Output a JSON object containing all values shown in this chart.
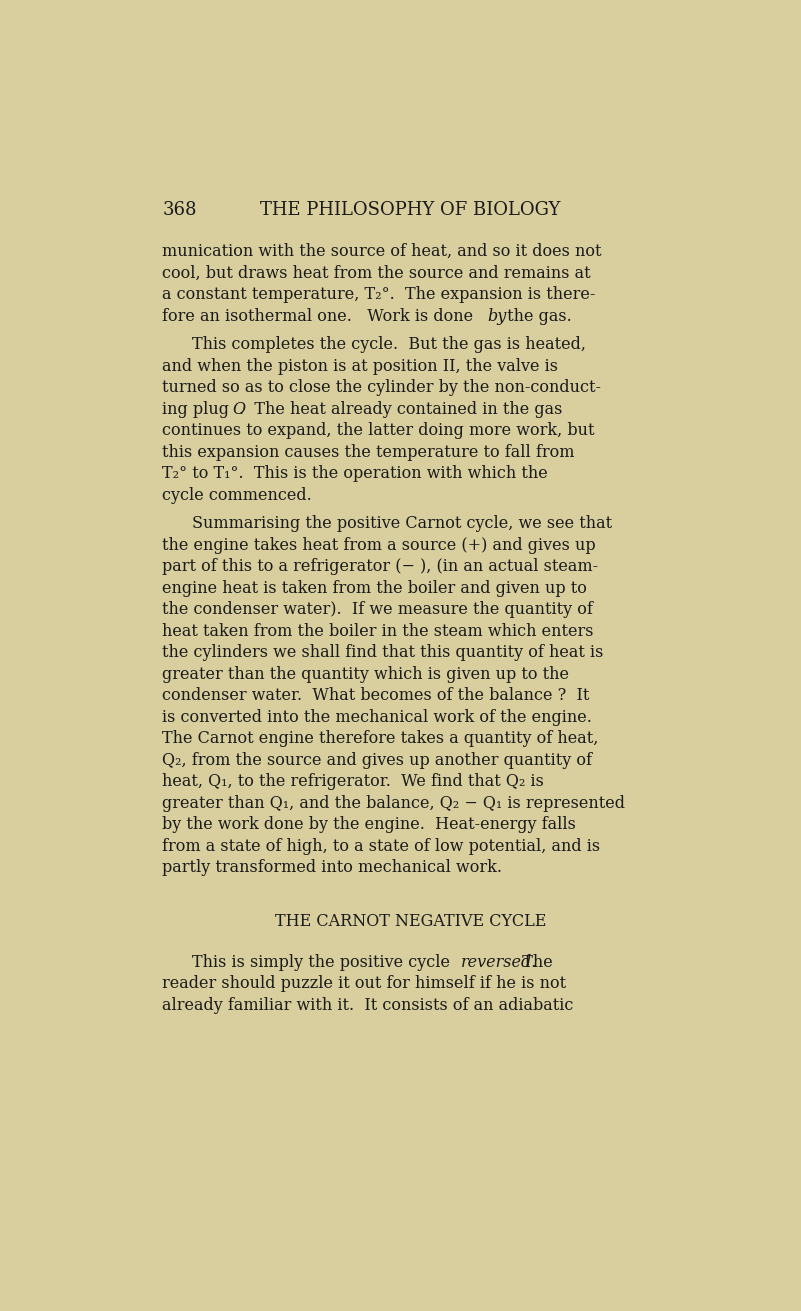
{
  "background_color": "#d9ce9e",
  "page_number": "368",
  "header": "THE PHILOSOPHY OF BIOLOGY",
  "text_color": "#1a1a1a",
  "font_size_body": 11.5,
  "font_size_header": 13,
  "section_heading": "THE CARNOT NEGATIVE CYCLE"
}
